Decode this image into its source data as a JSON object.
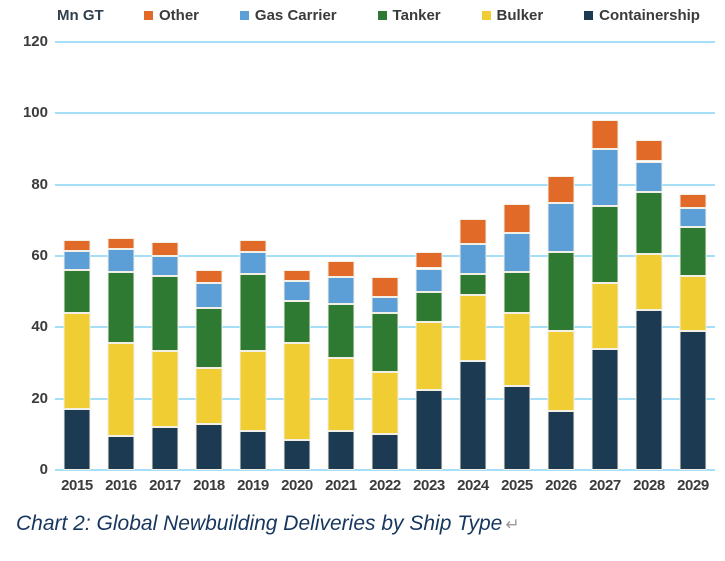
{
  "page": {
    "caption": "Chart 2: Global Newbuilding Deliveries by Ship Type",
    "caption_mark": "↵"
  },
  "colors": {
    "gridline": "#A5DFF7",
    "axis_text": "#3B3B3B",
    "unit_label": "#31404F",
    "caption_text": "#17365D",
    "pilcrow": "#9A9A9A"
  },
  "chart_data": {
    "type": "bar",
    "stacked": true,
    "title": "",
    "axis_unit_label": "Mn GT",
    "xlabel": "",
    "ylabel": "Mn GT",
    "ylim": [
      0,
      120
    ],
    "yticks": [
      0,
      20,
      40,
      60,
      80,
      100,
      120
    ],
    "grid": true,
    "legend_position": "top",
    "categories": [
      "2015",
      "2016",
      "2017",
      "2018",
      "2019",
      "2020",
      "2021",
      "2022",
      "2023",
      "2024",
      "2025",
      "2026",
      "2027",
      "2028",
      "2029"
    ],
    "series": [
      {
        "name": "Containership",
        "color": "#1C3A52",
        "values": [
          17,
          9.5,
          12,
          13,
          11,
          8.5,
          11,
          10,
          22.5,
          30.5,
          23.5,
          16.5,
          34,
          45,
          39
        ]
      },
      {
        "name": "Bulker",
        "color": "#EFCD33",
        "values": [
          27,
          26,
          21.5,
          15.5,
          22.5,
          27,
          20.5,
          17.5,
          19,
          18.5,
          20.5,
          22.5,
          18.5,
          15.5,
          15.5
        ]
      },
      {
        "name": "Tanker",
        "color": "#2E7A33",
        "values": [
          12,
          20,
          21,
          17,
          21.5,
          12,
          15,
          16.5,
          8.5,
          6,
          11.5,
          22,
          21.5,
          17.5,
          13.5
        ]
      },
      {
        "name": "Gas Carrier",
        "color": "#5B9FD6",
        "values": [
          5.5,
          6.5,
          5.5,
          7,
          6,
          5.5,
          7.5,
          4.5,
          6.5,
          8.5,
          11,
          14,
          16,
          8.5,
          5.5
        ]
      },
      {
        "name": "Other",
        "color": "#E16A28",
        "values": [
          3,
          3,
          4,
          3.5,
          3.5,
          3,
          4.5,
          5.5,
          4.5,
          7,
          8,
          7.5,
          8,
          6,
          4
        ]
      }
    ],
    "legend_order": [
      "Other",
      "Gas Carrier",
      "Tanker",
      "Bulker",
      "Containership"
    ],
    "totals": [
      64.5,
      65,
      64,
      56,
      64.5,
      56,
      58.5,
      54,
      61,
      70.5,
      74.5,
      82.5,
      98,
      92.5,
      77.5
    ]
  }
}
